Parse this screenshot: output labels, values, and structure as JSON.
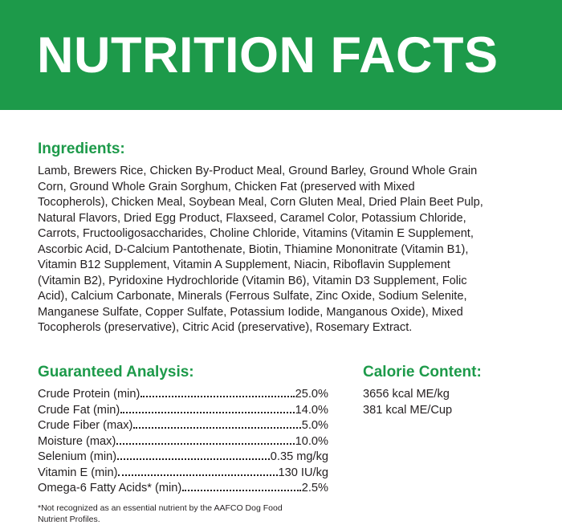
{
  "header": {
    "title": "NUTRITION FACTS"
  },
  "ingredients": {
    "heading": "Ingredients:",
    "lines": [
      "Lamb, Brewers Rice, Chicken By-Product Meal, Ground Barley, Ground Whole Grain",
      "Corn, Ground Whole Grain Sorghum, Chicken Fat (preserved with Mixed",
      "Tocopherols), Chicken Meal, Soybean Meal, Corn Gluten Meal, Dried Plain Beet Pulp,",
      "Natural Flavors, Dried Egg Product, Flaxseed, Caramel Color, Potassium Chloride,",
      "Carrots, Fructooligosaccharides, Choline Chloride, Vitamins (Vitamin E Supplement,",
      "Ascorbic Acid, D-Calcium Pantothenate, Biotin, Thiamine Mononitrate (Vitamin B1),",
      "Vitamin B12 Supplement, Vitamin A Supplement, Niacin, Riboflavin Supplement",
      "(Vitamin B2), Pyridoxine Hydrochloride (Vitamin B6), Vitamin D3 Supplement, Folic",
      "Acid), Calcium Carbonate, Minerals (Ferrous Sulfate, Zinc Oxide, Sodium Selenite,",
      "Manganese Sulfate, Copper Sulfate, Potassium Iodide, Manganous Oxide), Mixed",
      "Tocopherols (preservative), Citric Acid (preservative), Rosemary Extract."
    ]
  },
  "analysis": {
    "heading": "Guaranteed Analysis:",
    "rows": [
      [
        "Crude Protein (min)",
        "25.0%"
      ],
      [
        "Crude Fat (min)",
        "14.0%"
      ],
      [
        "Crude Fiber (max)",
        "5.0%"
      ],
      [
        "Moisture (max)",
        "10.0%"
      ],
      [
        "Selenium (min)",
        "0.35 mg/kg"
      ],
      [
        "Vitamin E (min)",
        "130 IU/kg"
      ],
      [
        "Omega-6 Fatty Acids* (min)",
        "2.5%"
      ]
    ],
    "footnote_lines": [
      "*Not recognized as an essential nutrient by the AAFCO Dog Food",
      "Nutrient Profiles."
    ]
  },
  "calories": {
    "heading": "Calorie Content:",
    "lines": [
      "3656 kcal ME/kg",
      "381 kcal ME/Cup"
    ]
  }
}
